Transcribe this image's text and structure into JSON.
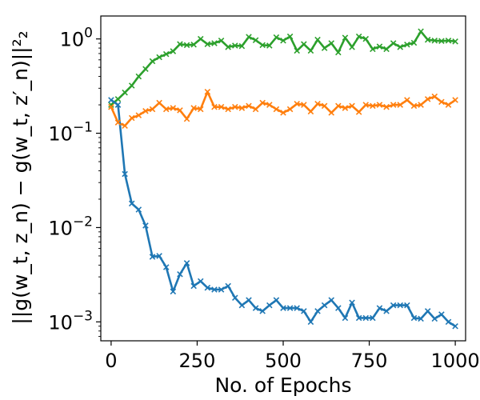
{
  "chart_data": {
    "type": "line",
    "title": "",
    "xlabel": "No. of Epochs",
    "ylabel": "||g(w_t, z_n) − g(w_t, z′_n)||²₂",
    "xlim": [
      -30,
      1030
    ],
    "ylim": [
      0.00063,
      1.75
    ],
    "yscale": "log",
    "grid": false,
    "legend": "none",
    "x_ticks": [
      0,
      250,
      500,
      750,
      1000
    ],
    "x_tick_labels": [
      "0",
      "250",
      "500",
      "750",
      "1000"
    ],
    "y_ticks": [
      0.001,
      0.01,
      0.1,
      1
    ],
    "y_tick_labels": [
      {
        "base": "10",
        "exp": "−3"
      },
      {
        "base": "10",
        "exp": "−2"
      },
      {
        "base": "10",
        "exp": "−1"
      },
      {
        "base": "10",
        "exp": "0"
      }
    ],
    "x": [
      0,
      20,
      40,
      60,
      80,
      100,
      120,
      140,
      160,
      180,
      200,
      220,
      240,
      260,
      280,
      300,
      320,
      340,
      360,
      380,
      400,
      420,
      440,
      460,
      480,
      500,
      520,
      540,
      560,
      580,
      600,
      620,
      640,
      660,
      680,
      700,
      720,
      740,
      760,
      780,
      800,
      820,
      840,
      860,
      880,
      900,
      920,
      940,
      960,
      980,
      1000
    ],
    "series": [
      {
        "color": "#2ca02c",
        "marker": "x",
        "values": [
          0.2,
          0.23,
          0.27,
          0.32,
          0.4,
          0.48,
          0.58,
          0.64,
          0.69,
          0.74,
          0.88,
          0.86,
          0.87,
          1.0,
          0.88,
          0.9,
          0.96,
          0.82,
          0.85,
          0.84,
          1.05,
          0.97,
          0.86,
          0.85,
          1.04,
          0.96,
          1.06,
          0.75,
          0.88,
          0.75,
          0.98,
          0.8,
          0.9,
          0.72,
          1.03,
          0.82,
          1.06,
          1.0,
          0.78,
          0.83,
          0.78,
          0.9,
          0.82,
          0.87,
          0.91,
          1.2,
          0.98,
          0.96,
          0.95,
          0.96,
          0.94
        ]
      },
      {
        "color": "#ff7f0e",
        "marker": "x",
        "values": [
          0.19,
          0.13,
          0.12,
          0.145,
          0.155,
          0.172,
          0.18,
          0.21,
          0.18,
          0.185,
          0.175,
          0.142,
          0.185,
          0.18,
          0.275,
          0.19,
          0.19,
          0.18,
          0.19,
          0.185,
          0.195,
          0.18,
          0.21,
          0.2,
          0.18,
          0.165,
          0.18,
          0.205,
          0.2,
          0.17,
          0.205,
          0.195,
          0.165,
          0.195,
          0.185,
          0.195,
          0.168,
          0.2,
          0.195,
          0.2,
          0.19,
          0.2,
          0.2,
          0.225,
          0.195,
          0.2,
          0.23,
          0.245,
          0.215,
          0.2,
          0.225
        ]
      },
      {
        "color": "#1f77b4",
        "marker": "x",
        "values": [
          0.225,
          0.2,
          0.037,
          0.018,
          0.0155,
          0.0105,
          0.0049,
          0.005,
          0.0038,
          0.0021,
          0.0032,
          0.0042,
          0.0024,
          0.0027,
          0.0023,
          0.0022,
          0.0022,
          0.0024,
          0.0018,
          0.0015,
          0.0017,
          0.0014,
          0.0013,
          0.0015,
          0.0017,
          0.0014,
          0.0014,
          0.0014,
          0.0013,
          0.001,
          0.0013,
          0.0015,
          0.0017,
          0.0014,
          0.0011,
          0.0016,
          0.0011,
          0.0011,
          0.0011,
          0.0014,
          0.0013,
          0.0015,
          0.0015,
          0.0015,
          0.0011,
          0.00108,
          0.0013,
          0.00108,
          0.0012,
          0.001,
          0.0009
        ]
      }
    ]
  }
}
